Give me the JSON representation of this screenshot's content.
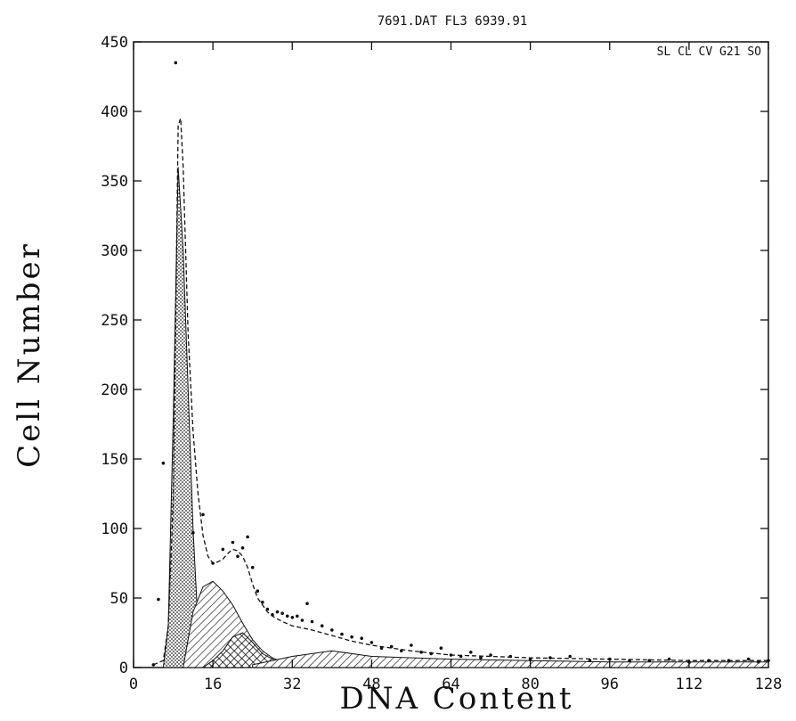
{
  "chart_data": {
    "type": "histogram",
    "title": "7691.DAT FL3 6939.91",
    "xlabel": "DNA Content",
    "ylabel": "Cell Number",
    "legend_text": "SL CL CV G21 SO",
    "legend_position": "top-right",
    "xlim": [
      0,
      128
    ],
    "ylim": [
      0,
      450
    ],
    "xticks": [
      0,
      16,
      32,
      48,
      64,
      80,
      96,
      112,
      128
    ],
    "yticks": [
      0,
      50,
      100,
      150,
      200,
      250,
      300,
      350,
      400,
      450
    ],
    "grid": false,
    "series": [
      {
        "role": "g1-peak",
        "fill": "dotted",
        "x": [
          6,
          7,
          8,
          9,
          10,
          11,
          12,
          13,
          14
        ],
        "y": [
          0,
          30,
          180,
          360,
          300,
          200,
          100,
          30,
          0
        ]
      },
      {
        "role": "s-phase",
        "fill": "hatched",
        "x": [
          10,
          12,
          14,
          16,
          18,
          20,
          22,
          24,
          26,
          28,
          30,
          32
        ],
        "y": [
          0,
          40,
          58,
          62,
          55,
          45,
          32,
          20,
          12,
          7,
          4,
          2
        ]
      },
      {
        "role": "g2-peak",
        "fill": "crosshatch",
        "x": [
          14,
          16,
          18,
          20,
          22,
          24,
          26,
          28,
          30,
          32
        ],
        "y": [
          0,
          5,
          12,
          22,
          25,
          18,
          10,
          6,
          3,
          1
        ]
      },
      {
        "role": "tail",
        "fill": "hatched",
        "x": [
          24,
          32,
          40,
          48,
          64,
          80,
          96,
          112,
          128
        ],
        "y": [
          2,
          8,
          12,
          8,
          6,
          5,
          4,
          4,
          4
        ]
      },
      {
        "role": "fit",
        "style": "dashed",
        "x": [
          4,
          6,
          7,
          8,
          8.5,
          9,
          9.5,
          10,
          10.5,
          11,
          12,
          13,
          14,
          15,
          16,
          17,
          18,
          19,
          20,
          21,
          22,
          23,
          24,
          25,
          26,
          27,
          28,
          30,
          32,
          36,
          40,
          44,
          48,
          56,
          64,
          72,
          80,
          96,
          112,
          128
        ],
        "y": [
          2,
          5,
          30,
          120,
          250,
          390,
          395,
          360,
          300,
          240,
          170,
          125,
          95,
          80,
          75,
          76,
          78,
          82,
          85,
          84,
          80,
          72,
          60,
          50,
          45,
          40,
          37,
          33,
          30,
          27,
          23,
          19,
          16,
          12,
          9,
          8,
          7,
          6,
          5,
          5
        ]
      },
      {
        "role": "data",
        "style": "points",
        "x": [
          4,
          5,
          6,
          8.5,
          12,
          14,
          16,
          18,
          20,
          21,
          22,
          23,
          24,
          25,
          26,
          27,
          28,
          29,
          30,
          31,
          32,
          33,
          34,
          35,
          36,
          38,
          40,
          42,
          44,
          46,
          48,
          50,
          52,
          54,
          56,
          58,
          60,
          62,
          64,
          66,
          68,
          70,
          72,
          76,
          80,
          84,
          88,
          92,
          96,
          100,
          104,
          108,
          112,
          116,
          120,
          124,
          126,
          128
        ],
        "y": [
          2,
          49,
          147,
          435,
          97,
          110,
          75,
          85,
          90,
          80,
          86,
          94,
          72,
          55,
          47,
          42,
          38,
          40,
          39,
          37,
          36,
          37,
          34,
          46,
          33,
          30,
          27,
          24,
          22,
          21,
          18,
          14,
          15,
          12,
          16,
          11,
          10,
          14,
          9,
          8,
          11,
          7,
          9,
          8,
          6,
          7,
          8,
          5,
          6,
          5,
          5,
          6,
          4,
          5,
          5,
          6,
          4,
          5
        ]
      }
    ]
  }
}
